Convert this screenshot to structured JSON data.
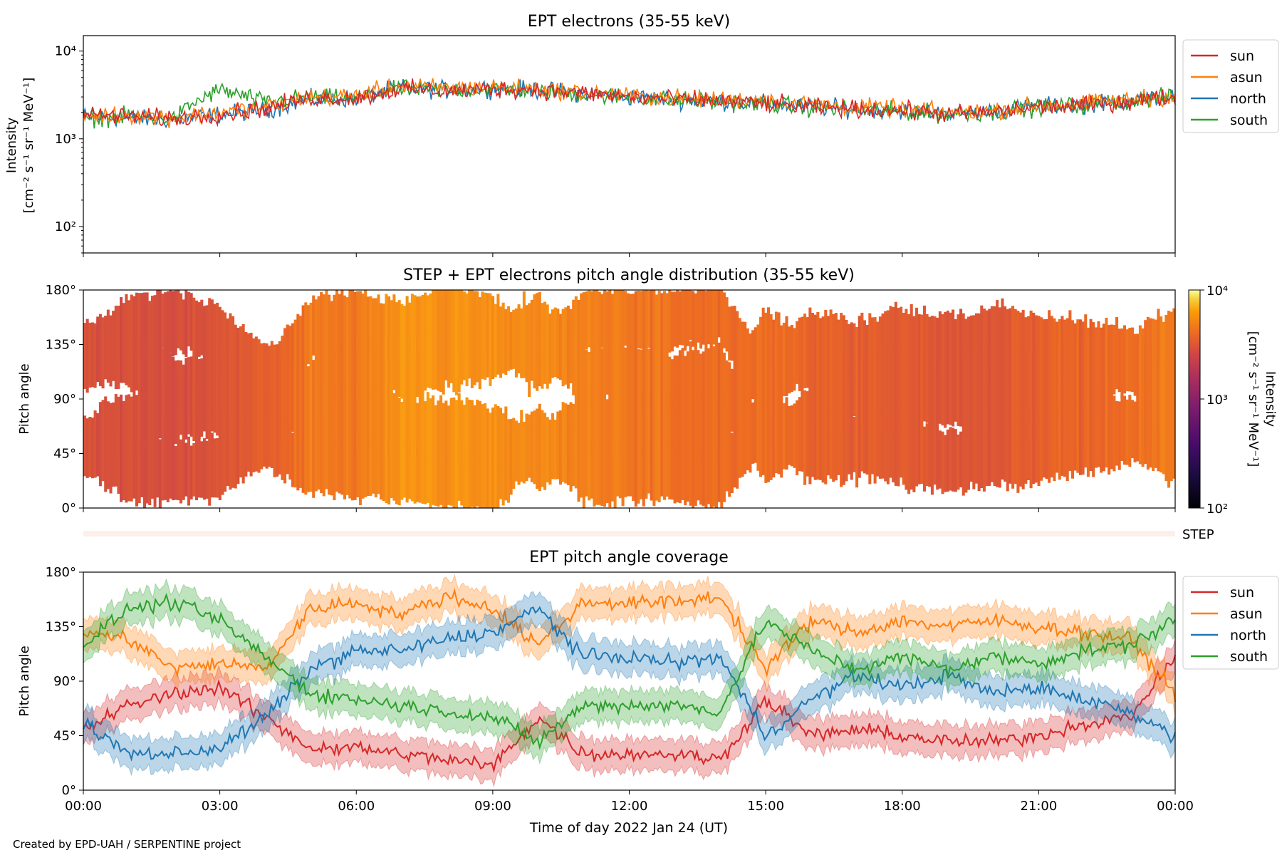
{
  "credit": "Created by EPD-UAH / SERPENTINE project",
  "colors": {
    "sun": "#d62728",
    "asun": "#ff7f0e",
    "north": "#1f77b4",
    "south": "#2ca02c",
    "step_band": "#fdf0ea"
  },
  "chart_data": [
    {
      "type": "line",
      "title": "EPT electrons (35-55 keV)",
      "ylabel": "Intensity",
      "ylabel_units": "[cm⁻² s⁻¹ sr⁻¹ MeV⁻¹]",
      "yscale": "log",
      "ylim": [
        50,
        15000
      ],
      "yticks": [
        {
          "value": 100,
          "label": "10²"
        },
        {
          "value": 1000,
          "label": "10³"
        },
        {
          "value": 10000,
          "label": "10⁴"
        }
      ],
      "x_hours": [
        0,
        1,
        2,
        3,
        4,
        5,
        6,
        7,
        8,
        9,
        10,
        11,
        12,
        13,
        14,
        15,
        16,
        17,
        18,
        19,
        20,
        21,
        22,
        23,
        24
      ],
      "legend": "right-outside",
      "series": [
        {
          "name": "sun",
          "values": [
            1900,
            1800,
            1700,
            1900,
            2200,
            2900,
            2900,
            3700,
            3500,
            3700,
            3600,
            3300,
            3000,
            2800,
            2700,
            2500,
            2300,
            2200,
            2100,
            1900,
            2000,
            2300,
            2400,
            2700,
            3000
          ]
        },
        {
          "name": "asun",
          "values": [
            1850,
            1850,
            1750,
            2000,
            2300,
            3000,
            3100,
            4000,
            3800,
            3900,
            3700,
            3400,
            3100,
            2900,
            2800,
            2800,
            2500,
            2300,
            2200,
            2000,
            2100,
            2400,
            2500,
            2800,
            3100
          ]
        },
        {
          "name": "north",
          "values": [
            1800,
            1700,
            1650,
            1900,
            2100,
            2800,
            2900,
            3800,
            3600,
            3800,
            3600,
            3300,
            3000,
            2800,
            2700,
            2500,
            2300,
            2200,
            2100,
            1950,
            2050,
            2350,
            2450,
            2700,
            3050
          ]
        },
        {
          "name": "south",
          "values": [
            1700,
            1800,
            1700,
            3600,
            2600,
            3000,
            2800,
            3700,
            3600,
            3700,
            3500,
            3200,
            3000,
            2750,
            2650,
            2500,
            2250,
            2150,
            2050,
            1900,
            2000,
            2300,
            2400,
            2750,
            3000
          ]
        }
      ]
    },
    {
      "type": "heatmap",
      "title": "STEP + EPT electrons pitch angle distribution (35-55 keV)",
      "ylabel": "Pitch angle",
      "ylim": [
        0,
        180
      ],
      "yticks": [
        "0°",
        "45°",
        "90°",
        "135°",
        "180°"
      ],
      "colorbar": {
        "label": "Intensity",
        "units": "[cm⁻² s⁻¹ sr⁻¹ MeV⁻¹]",
        "scale": "log",
        "range": [
          100,
          10000
        ],
        "ticks": [
          "10²",
          "10³",
          "10⁴"
        ],
        "colormap": "inferno"
      },
      "step_label": "STEP"
    },
    {
      "type": "line",
      "title": "EPT pitch angle coverage",
      "ylabel": "Pitch angle",
      "xlabel": "Time of day 2022 Jan 24 (UT)",
      "ylim": [
        0,
        180
      ],
      "yticks": [
        "0°",
        "45°",
        "90°",
        "135°",
        "180°"
      ],
      "xticks": [
        "00:00",
        "03:00",
        "06:00",
        "09:00",
        "12:00",
        "15:00",
        "18:00",
        "21:00",
        "00:00"
      ],
      "legend": "right-outside",
      "series": [
        {
          "name": "sun",
          "values": [
            50,
            70,
            80,
            85,
            60,
            35,
            35,
            30,
            25,
            20,
            60,
            30,
            30,
            30,
            25,
            75,
            45,
            50,
            45,
            40,
            40,
            45,
            55,
            60,
            110
          ]
        },
        {
          "name": "asun",
          "values": [
            130,
            125,
            100,
            105,
            100,
            150,
            155,
            145,
            160,
            150,
            120,
            155,
            155,
            155,
            160,
            100,
            140,
            130,
            140,
            135,
            140,
            135,
            130,
            125,
            80
          ]
        },
        {
          "name": "north",
          "values": [
            55,
            30,
            30,
            35,
            60,
            100,
            115,
            115,
            125,
            130,
            150,
            110,
            110,
            105,
            110,
            45,
            75,
            95,
            85,
            95,
            80,
            85,
            75,
            65,
            45
          ]
        },
        {
          "name": "south",
          "values": [
            120,
            150,
            155,
            140,
            110,
            80,
            75,
            70,
            65,
            60,
            40,
            70,
            70,
            70,
            65,
            140,
            115,
            100,
            110,
            100,
            110,
            105,
            115,
            120,
            140
          ]
        }
      ],
      "band_halfwidth": 13
    }
  ]
}
